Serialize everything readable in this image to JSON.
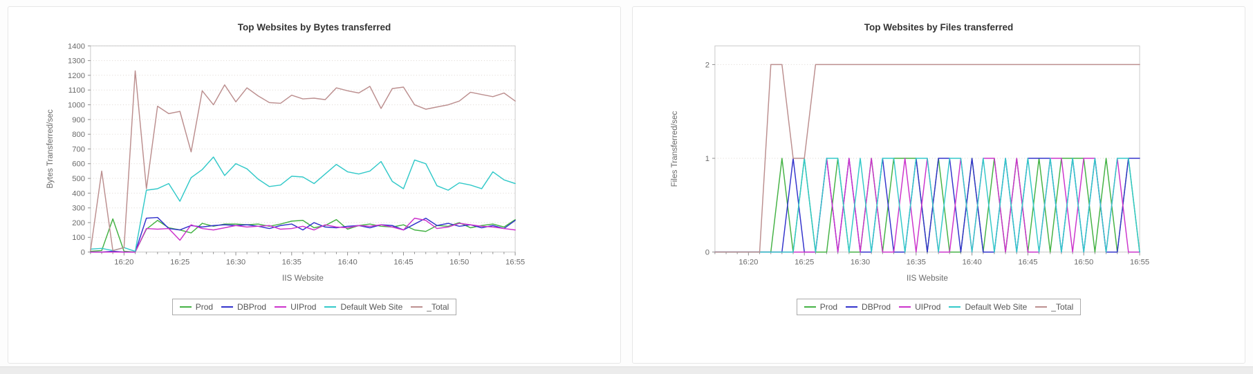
{
  "chart_data": [
    {
      "type": "line",
      "title": "Top Websites by Bytes transferred",
      "xlabel": "IIS Website",
      "ylabel": "Bytes Transferred/sec",
      "x": [
        "16:17",
        "16:18",
        "16:19",
        "16:20",
        "16:21",
        "16:22",
        "16:23",
        "16:24",
        "16:25",
        "16:26",
        "16:27",
        "16:28",
        "16:29",
        "16:30",
        "16:31",
        "16:32",
        "16:33",
        "16:34",
        "16:35",
        "16:36",
        "16:37",
        "16:38",
        "16:39",
        "16:40",
        "16:41",
        "16:42",
        "16:43",
        "16:44",
        "16:45",
        "16:46",
        "16:47",
        "16:48",
        "16:49",
        "16:50",
        "16:51",
        "16:52",
        "16:53",
        "16:54",
        "16:55"
      ],
      "xticks": [
        "16:20",
        "16:25",
        "16:30",
        "16:35",
        "16:40",
        "16:45",
        "16:50",
        "16:55"
      ],
      "ylim": [
        0,
        1400
      ],
      "yticks": [
        0,
        100,
        200,
        300,
        400,
        500,
        600,
        700,
        800,
        900,
        1000,
        1100,
        1200,
        1300,
        1400
      ],
      "grid": "dotted-horizontal",
      "legend_position": "bottom",
      "series": [
        {
          "name": "Prod",
          "color": "#44b244",
          "values": [
            5,
            10,
            225,
            5,
            0,
            155,
            215,
            165,
            150,
            130,
            195,
            175,
            190,
            190,
            185,
            190,
            175,
            190,
            210,
            215,
            165,
            180,
            220,
            155,
            180,
            190,
            175,
            170,
            185,
            150,
            140,
            180,
            175,
            200,
            165,
            180,
            190,
            170,
            220
          ]
        },
        {
          "name": "DBProd",
          "color": "#3333cc",
          "values": [
            0,
            0,
            5,
            0,
            0,
            230,
            235,
            160,
            150,
            180,
            170,
            180,
            185,
            180,
            185,
            175,
            160,
            180,
            190,
            150,
            200,
            170,
            165,
            175,
            180,
            165,
            185,
            180,
            150,
            190,
            230,
            180,
            195,
            175,
            185,
            165,
            180,
            160,
            215
          ]
        },
        {
          "name": "UIProd",
          "color": "#cc33cc",
          "values": [
            0,
            0,
            0,
            0,
            0,
            160,
            155,
            160,
            80,
            185,
            160,
            150,
            165,
            180,
            170,
            175,
            180,
            155,
            160,
            175,
            150,
            185,
            170,
            165,
            180,
            175,
            185,
            170,
            150,
            230,
            215,
            160,
            170,
            195,
            185,
            175,
            170,
            160,
            150
          ]
        },
        {
          "name": "Default Web Site",
          "color": "#33c9c9",
          "values": [
            20,
            25,
            10,
            30,
            5,
            420,
            430,
            465,
            345,
            505,
            560,
            645,
            520,
            600,
            565,
            495,
            445,
            455,
            515,
            510,
            465,
            530,
            595,
            545,
            530,
            550,
            615,
            480,
            430,
            625,
            600,
            450,
            420,
            470,
            455,
            430,
            545,
            490,
            465
          ]
        },
        {
          "name": "_Total",
          "color": "#bc8f8f",
          "values": [
            10,
            550,
            10,
            30,
            1230,
            430,
            990,
            940,
            955,
            680,
            1095,
            1000,
            1135,
            1020,
            1115,
            1060,
            1015,
            1010,
            1065,
            1040,
            1045,
            1035,
            1115,
            1095,
            1080,
            1125,
            975,
            1110,
            1120,
            1000,
            970,
            985,
            1000,
            1025,
            1085,
            1070,
            1055,
            1080,
            1025
          ]
        }
      ]
    },
    {
      "type": "line",
      "title": "Top Websites by Files transferred",
      "xlabel": "IIS Website",
      "ylabel": "Files Transferred/sec",
      "x": [
        "16:17",
        "16:18",
        "16:19",
        "16:20",
        "16:21",
        "16:22",
        "16:23",
        "16:24",
        "16:25",
        "16:26",
        "16:27",
        "16:28",
        "16:29",
        "16:30",
        "16:31",
        "16:32",
        "16:33",
        "16:34",
        "16:35",
        "16:36",
        "16:37",
        "16:38",
        "16:39",
        "16:40",
        "16:41",
        "16:42",
        "16:43",
        "16:44",
        "16:45",
        "16:46",
        "16:47",
        "16:48",
        "16:49",
        "16:50",
        "16:51",
        "16:52",
        "16:53",
        "16:54",
        "16:55"
      ],
      "xticks": [
        "16:20",
        "16:25",
        "16:30",
        "16:35",
        "16:40",
        "16:45",
        "16:50",
        "16:55"
      ],
      "ylim": [
        0,
        2.2
      ],
      "yticks": [
        0,
        1,
        2
      ],
      "grid": "dotted-horizontal",
      "legend_position": "bottom",
      "series": [
        {
          "name": "Prod",
          "color": "#44b244",
          "values": [
            0,
            0,
            0,
            0,
            0,
            0,
            1,
            0,
            1,
            0,
            0,
            1,
            0,
            0,
            1,
            0,
            1,
            1,
            1,
            0,
            1,
            0,
            0,
            1,
            0,
            1,
            0,
            1,
            0,
            1,
            0,
            1,
            1,
            1,
            0,
            1,
            0,
            1,
            0
          ]
        },
        {
          "name": "DBProd",
          "color": "#3333cc",
          "values": [
            0,
            0,
            0,
            0,
            0,
            0,
            0,
            1,
            0,
            0,
            1,
            0,
            1,
            0,
            0,
            1,
            0,
            0,
            1,
            0,
            1,
            1,
            0,
            1,
            0,
            0,
            1,
            0,
            1,
            1,
            1,
            0,
            1,
            0,
            1,
            0,
            0,
            1,
            1
          ]
        },
        {
          "name": "UIProd",
          "color": "#cc33cc",
          "values": [
            0,
            0,
            0,
            0,
            0,
            0,
            0,
            0,
            0,
            0,
            1,
            0,
            1,
            0,
            1,
            0,
            0,
            1,
            0,
            1,
            0,
            0,
            1,
            0,
            1,
            1,
            0,
            1,
            0,
            0,
            1,
            1,
            0,
            1,
            1,
            0,
            1,
            0,
            0
          ]
        },
        {
          "name": "Default Web Site",
          "color": "#33c9c9",
          "values": [
            0,
            0,
            0,
            0,
            0,
            0,
            0,
            0,
            1,
            0,
            1,
            1,
            0,
            1,
            0,
            1,
            1,
            0,
            1,
            1,
            0,
            1,
            1,
            0,
            1,
            0,
            1,
            0,
            1,
            0,
            1,
            0,
            1,
            0,
            1,
            0,
            1,
            1,
            0
          ]
        },
        {
          "name": "_Total",
          "color": "#bc8f8f",
          "values": [
            0,
            0,
            0,
            0,
            0,
            2,
            2,
            1,
            1,
            2,
            2,
            2,
            2,
            2,
            2,
            2,
            2,
            2,
            2,
            2,
            2,
            2,
            2,
            2,
            2,
            2,
            2,
            2,
            2,
            2,
            2,
            2,
            2,
            2,
            2,
            2,
            2,
            2,
            2
          ]
        }
      ]
    }
  ]
}
